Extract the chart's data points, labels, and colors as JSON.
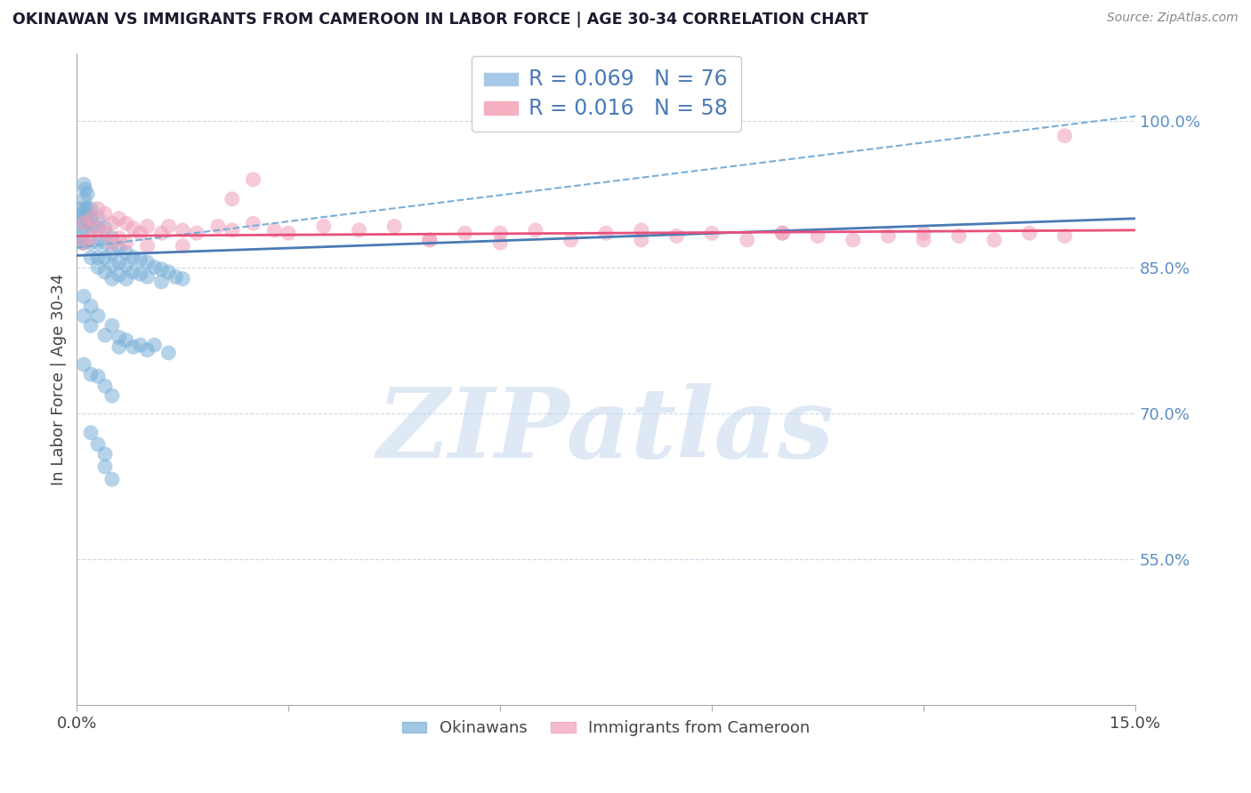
{
  "title": "OKINAWAN VS IMMIGRANTS FROM CAMEROON IN LABOR FORCE | AGE 30-34 CORRELATION CHART",
  "source_text": "Source: ZipAtlas.com",
  "ylabel": "In Labor Force | Age 30-34",
  "xlim": [
    0.0,
    0.15
  ],
  "ylim": [
    0.4,
    1.07
  ],
  "yticks": [
    0.55,
    0.7,
    0.85,
    1.0
  ],
  "ytick_labels": [
    "55.0%",
    "70.0%",
    "85.0%",
    "100.0%"
  ],
  "xticks": [
    0.0,
    0.03,
    0.06,
    0.09,
    0.12,
    0.15
  ],
  "xtick_labels": [
    "0.0%",
    "",
    "",
    "",
    "",
    "15.0%"
  ],
  "legend_blue_color": "#a8c8e8",
  "legend_pink_color": "#f4b0c0",
  "blue_line_color": "#4a7ab5",
  "blue_line_dashed_color": "#7aaed8",
  "pink_line_color": "#e8507a",
  "grid_color": "#c8d8e8",
  "watermark_text": "ZIPatlas",
  "watermark_color": "#c0d4ec",
  "scatter_blue_color": "#7ab0d8",
  "scatter_pink_color": "#f0a0b8",
  "scatter_alpha": 0.55,
  "scatter_size": 150,
  "blue_scatter_x": [
    0.0005,
    0.0005,
    0.0005,
    0.0007,
    0.0007,
    0.001,
    0.001,
    0.001,
    0.001,
    0.001,
    0.0012,
    0.0012,
    0.0015,
    0.0015,
    0.0015,
    0.002,
    0.002,
    0.002,
    0.002,
    0.002,
    0.003,
    0.003,
    0.003,
    0.003,
    0.003,
    0.004,
    0.004,
    0.004,
    0.004,
    0.005,
    0.005,
    0.005,
    0.005,
    0.006,
    0.006,
    0.006,
    0.007,
    0.007,
    0.007,
    0.008,
    0.008,
    0.009,
    0.009,
    0.01,
    0.01,
    0.011,
    0.012,
    0.012,
    0.013,
    0.014,
    0.015,
    0.001,
    0.001,
    0.002,
    0.002,
    0.003,
    0.004,
    0.005,
    0.006,
    0.006,
    0.007,
    0.008,
    0.009,
    0.01,
    0.011,
    0.013,
    0.001,
    0.002,
    0.003,
    0.004,
    0.005,
    0.002,
    0.003,
    0.004,
    0.004,
    0.005
  ],
  "blue_scatter_y": [
    0.91,
    0.895,
    0.88,
    0.9,
    0.875,
    0.935,
    0.92,
    0.905,
    0.89,
    0.875,
    0.93,
    0.91,
    0.925,
    0.91,
    0.895,
    0.91,
    0.9,
    0.89,
    0.875,
    0.86,
    0.9,
    0.89,
    0.875,
    0.86,
    0.85,
    0.89,
    0.875,
    0.86,
    0.845,
    0.88,
    0.865,
    0.852,
    0.838,
    0.87,
    0.855,
    0.842,
    0.865,
    0.852,
    0.838,
    0.86,
    0.845,
    0.858,
    0.843,
    0.855,
    0.84,
    0.85,
    0.848,
    0.835,
    0.845,
    0.84,
    0.838,
    0.82,
    0.8,
    0.81,
    0.79,
    0.8,
    0.78,
    0.79,
    0.778,
    0.768,
    0.775,
    0.768,
    0.77,
    0.765,
    0.77,
    0.762,
    0.75,
    0.74,
    0.738,
    0.728,
    0.718,
    0.68,
    0.668,
    0.658,
    0.645,
    0.632
  ],
  "pink_scatter_x": [
    0.001,
    0.001,
    0.002,
    0.002,
    0.003,
    0.003,
    0.004,
    0.004,
    0.005,
    0.005,
    0.006,
    0.006,
    0.007,
    0.007,
    0.008,
    0.009,
    0.01,
    0.01,
    0.012,
    0.013,
    0.015,
    0.015,
    0.017,
    0.02,
    0.022,
    0.025,
    0.028,
    0.03,
    0.035,
    0.04,
    0.045,
    0.05,
    0.055,
    0.06,
    0.065,
    0.07,
    0.075,
    0.08,
    0.085,
    0.09,
    0.095,
    0.1,
    0.105,
    0.11,
    0.115,
    0.12,
    0.125,
    0.13,
    0.135,
    0.14,
    0.025,
    0.022,
    0.05,
    0.06,
    0.08,
    0.1,
    0.12,
    0.14
  ],
  "pink_scatter_y": [
    0.895,
    0.875,
    0.9,
    0.88,
    0.91,
    0.89,
    0.905,
    0.885,
    0.895,
    0.875,
    0.9,
    0.88,
    0.895,
    0.875,
    0.89,
    0.885,
    0.892,
    0.872,
    0.885,
    0.892,
    0.888,
    0.872,
    0.885,
    0.892,
    0.888,
    0.895,
    0.888,
    0.885,
    0.892,
    0.888,
    0.892,
    0.878,
    0.885,
    0.875,
    0.888,
    0.878,
    0.885,
    0.888,
    0.882,
    0.885,
    0.878,
    0.885,
    0.882,
    0.878,
    0.882,
    0.885,
    0.882,
    0.878,
    0.885,
    0.882,
    0.94,
    0.92,
    0.878,
    0.885,
    0.878,
    0.885,
    0.878,
    0.985
  ],
  "blue_trend_x": [
    0.0,
    0.15
  ],
  "blue_trend_y": [
    0.862,
    0.9
  ],
  "blue_dashed_trend_x": [
    0.0,
    0.15
  ],
  "blue_dashed_trend_y": [
    0.87,
    1.005
  ],
  "pink_trend_x": [
    0.0,
    0.15
  ],
  "pink_trend_y": [
    0.882,
    0.888
  ],
  "bottom_legend_okinawan": "Okinawans",
  "bottom_legend_cameroon": "Immigrants from Cameroon"
}
